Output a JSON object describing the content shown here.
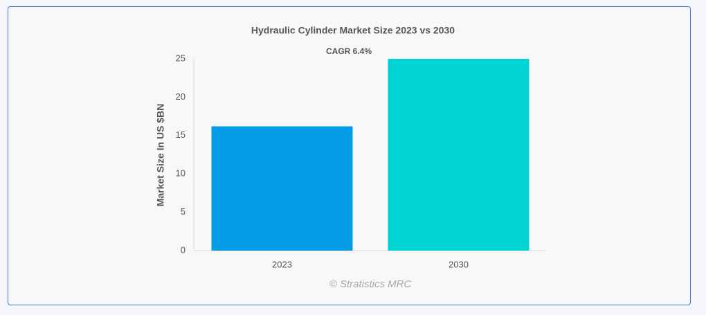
{
  "chart_data": {
    "type": "bar",
    "title": "Hydraulic Cylinder Market Size 2023 vs 2030",
    "annotation": "CAGR 6.4%",
    "ylabel": "Market Size In US $BN",
    "source": "© Stratistics MRC",
    "categories": [
      "2023",
      "2030"
    ],
    "values": [
      16.2,
      25.0
    ],
    "colors": [
      "#039be5",
      "#00d4d4"
    ],
    "ylim": [
      0,
      25
    ],
    "yticks": [
      0,
      5,
      10,
      15,
      20,
      25
    ],
    "grid": false
  }
}
